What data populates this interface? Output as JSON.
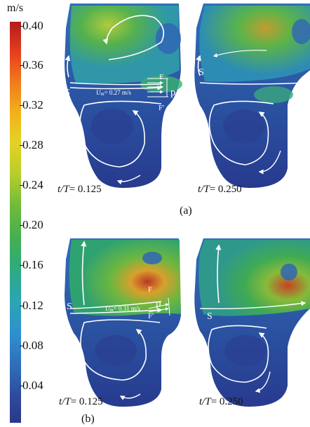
{
  "colorbar": {
    "unit": "m/s",
    "ticks": [
      "0.40",
      "0.36",
      "0.32",
      "0.28",
      "0.24",
      "0.20",
      "0.16",
      "0.12",
      "0.08",
      "0.04"
    ],
    "colors": {
      "max": "#b21c1c",
      "mid": "#43b04f",
      "min": "#2c3788"
    }
  },
  "panel_a": {
    "caption": "(a)",
    "left": {
      "time_prefix": "t/T",
      "time_value": "= 0.125",
      "label_S": "S",
      "label_F": "F",
      "label_F2": "F'",
      "label_p": "p",
      "velocity": "U",
      "velocity_sub": "m",
      "velocity_value": "= 0.27 m/s"
    },
    "right": {
      "time_prefix": "t/T",
      "time_value": "= 0.250",
      "label_S": "S"
    }
  },
  "panel_b": {
    "caption": "(b)",
    "left": {
      "time_prefix": "t/T",
      "time_value": "= 0.125",
      "label_S": "S",
      "label_F": "F",
      "label_F2": "F'",
      "label_p": "p",
      "velocity": "U",
      "velocity_sub": "m",
      "velocity_value": "= 0.31 m/s"
    },
    "right": {
      "time_prefix": "t/T",
      "time_value": "= 0.250",
      "label_S": "S"
    }
  }
}
